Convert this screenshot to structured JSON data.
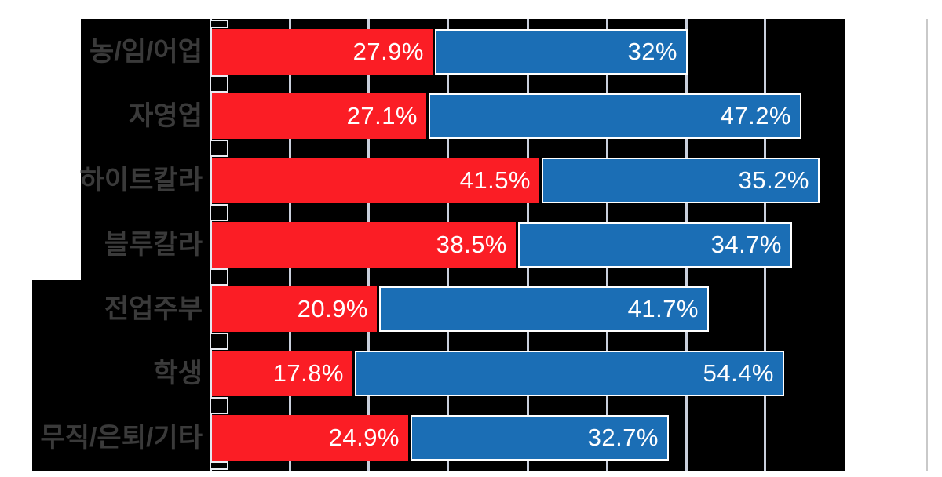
{
  "chart_data": {
    "type": "bar",
    "orientation": "horizontal",
    "title": "",
    "xlabel": "",
    "ylabel": "",
    "xlim": [
      0,
      80
    ],
    "grid": true,
    "legend": "none",
    "categories": [
      "농/임/어업",
      "자영업",
      "하이트칼라",
      "블루칼라",
      "전업주부",
      "학생",
      "무직/은퇴/기타"
    ],
    "series": [
      {
        "name": "red",
        "color": "#fb1d25",
        "values": [
          27.9,
          27.1,
          41.5,
          38.5,
          20.9,
          17.8,
          24.9
        ],
        "labels": [
          "27.9%",
          "27.1%",
          "41.5%",
          "38.5%",
          "20.9%",
          "17.8%",
          "24.9%"
        ]
      },
      {
        "name": "blue",
        "color": "#1b6eb5",
        "values": [
          32,
          47.2,
          35.2,
          34.7,
          41.7,
          54.4,
          32.7
        ],
        "labels": [
          "32%",
          "47.2%",
          "35.2%",
          "34.7%",
          "41.7%",
          "54.4%",
          "32.7%"
        ]
      }
    ],
    "axis": {
      "unit": "%",
      "gridline_percents": [
        10,
        20,
        30,
        40,
        50,
        60,
        70
      ],
      "marker_bar_percent": 2
    },
    "colors": {
      "plot_background": "#000000",
      "page_background": "#ffffff",
      "gridline": "#c9cfdc",
      "bar_outline": "#ffffff",
      "category_label": "#3a3a3a",
      "value_label": "#ffffff",
      "edge_line": "#c9c9c9"
    }
  }
}
